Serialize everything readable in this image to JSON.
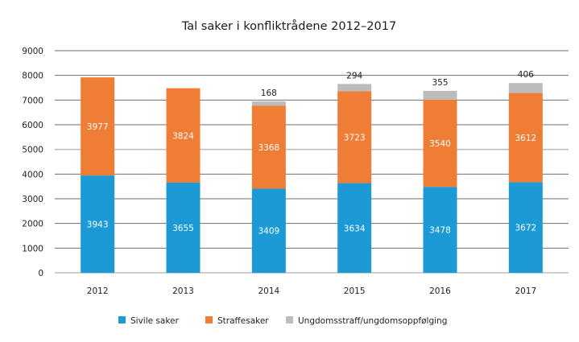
{
  "chart_data": {
    "type": "bar",
    "stacked": true,
    "title": "Tal saker i konfliktrådene 2012–2017",
    "xlabel": "",
    "ylabel": "",
    "categories": [
      "2012",
      "2013",
      "2014",
      "2015",
      "2016",
      "2017"
    ],
    "ylim": [
      0,
      9000
    ],
    "yticks": [
      0,
      1000,
      2000,
      3000,
      4000,
      5000,
      6000,
      7000,
      8000,
      9000
    ],
    "grid": true,
    "legend_position": "bottom",
    "series": [
      {
        "name": "Sivile saker",
        "color": "#1b9ad6",
        "label_position": "inside",
        "values": [
          3943,
          3655,
          3409,
          3634,
          3478,
          3672
        ]
      },
      {
        "name": "Straffesaker",
        "color": "#ef7d35",
        "label_position": "inside",
        "values": [
          3977,
          3824,
          3368,
          3723,
          3540,
          3612
        ]
      },
      {
        "name": "Ungdomsstraff/ungdomsoppfølging",
        "color": "#bcbcbc",
        "label_position": "above",
        "values": [
          0,
          0,
          168,
          294,
          355,
          406
        ]
      }
    ]
  }
}
